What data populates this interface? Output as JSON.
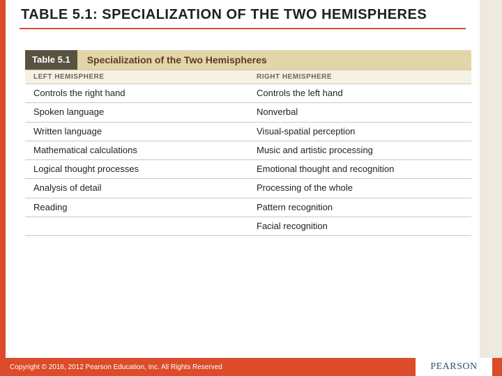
{
  "colors": {
    "accent": "#dc4b2a",
    "side_strip": "#eeeae0",
    "title_text": "#20201e",
    "title_rule": "#dc4b2a",
    "table_head_bg": "#e2d5a8",
    "table_chip_bg": "#585241",
    "table_head_title": "#5d3a24",
    "col_head_bg": "#f5f1e4",
    "col_head_text": "#6a6657",
    "row_border": "#cfc7b3",
    "footer_bg": "#dc4b2a",
    "logo_text": "#2f4e7a"
  },
  "title": "TABLE 5.1: SPECIALIZATION OF THE TWO HEMISPHERES",
  "table": {
    "chip": "Table 5.1",
    "heading": "Specialization of the Two Hemispheres",
    "columns": [
      "LEFT HEMISPHERE",
      "RIGHT HEMISPHERE"
    ],
    "rows": [
      [
        "Controls the right hand",
        "Controls the left hand"
      ],
      [
        "Spoken language",
        "Nonverbal"
      ],
      [
        "Written language",
        "Visual-spatial perception"
      ],
      [
        "Mathematical calculations",
        "Music and artistic processing"
      ],
      [
        "Logical thought processes",
        "Emotional thought and recognition"
      ],
      [
        "Analysis of detail",
        "Processing of the whole"
      ],
      [
        "Reading",
        "Pattern recognition"
      ],
      [
        "",
        "Facial recognition"
      ]
    ]
  },
  "footer": {
    "copyright": "Copyright © 2016, 2012 Pearson Education, Inc. All Rights Reserved",
    "logo": "PEARSON"
  }
}
